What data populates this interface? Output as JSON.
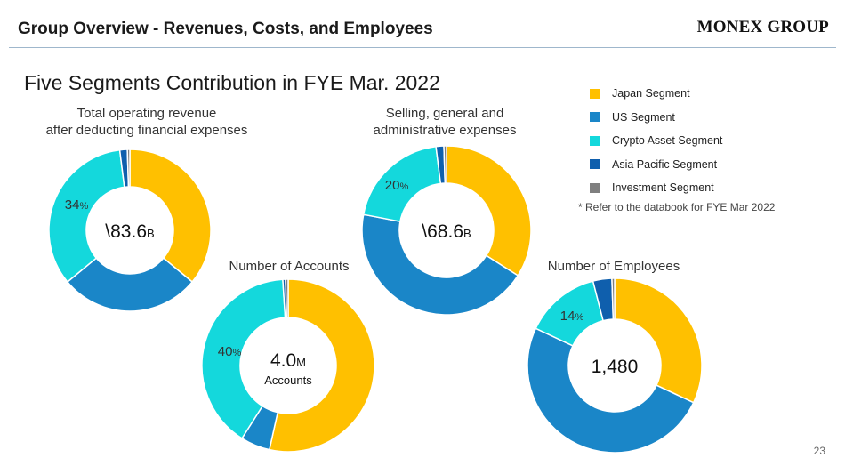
{
  "header": {
    "title": "Group Overview - Revenues, Costs, and Employees",
    "logo": "MONEX GROUP"
  },
  "section_title": "Five Segments Contribution in FYE Mar. 2022",
  "colors": {
    "japan": "#ffc000",
    "us": "#1a86c8",
    "crypto": "#14d8dc",
    "asia": "#0f5fad",
    "investment": "#7f7f7f"
  },
  "legend": [
    {
      "label": "Japan Segment",
      "color": "#ffc000"
    },
    {
      "label": "US Segment",
      "color": "#1a86c8"
    },
    {
      "label": "Crypto Asset Segment",
      "color": "#14d8dc"
    },
    {
      "label": "Asia Pacific Segment",
      "color": "#0f5fad"
    },
    {
      "label": "Investment Segment",
      "color": "#7f7f7f"
    }
  ],
  "note": "* Refer to the databook for FYE Mar 2022",
  "page_number": "23",
  "chart_data": [
    {
      "type": "pie",
      "title_lines": [
        "Total operating revenue",
        "after deducting financial expenses"
      ],
      "center": {
        "value": "\\83.6",
        "unit": "B"
      },
      "series_names": [
        "Japan Segment",
        "US Segment",
        "Crypto Asset Segment",
        "Asia Pacific Segment",
        "Investment Segment"
      ],
      "values": [
        36,
        28,
        34,
        1.5,
        0.5
      ],
      "data_labels": [
        {
          "segment": "Crypto Asset Segment",
          "number": "34",
          "unit": "%"
        }
      ]
    },
    {
      "type": "pie",
      "title_lines": [
        "Selling, general and",
        "administrative expenses"
      ],
      "center": {
        "value": "\\68.6",
        "unit": "B"
      },
      "series_names": [
        "Japan Segment",
        "US Segment",
        "Crypto Asset Segment",
        "Asia Pacific Segment",
        "Investment Segment"
      ],
      "values": [
        34,
        44,
        20,
        1.5,
        0.5
      ],
      "data_labels": [
        {
          "segment": "Crypto Asset Segment",
          "number": "20",
          "unit": "%"
        }
      ]
    },
    {
      "type": "pie",
      "title_lines": [
        "Number of Accounts"
      ],
      "center": {
        "value": "4.0",
        "unit": "M",
        "sub": "Accounts"
      },
      "series_names": [
        "Japan Segment",
        "US Segment",
        "Crypto Asset Segment",
        "Asia Pacific Segment",
        "Investment Segment"
      ],
      "values": [
        53.5,
        5.5,
        40,
        0.5,
        0.5
      ],
      "data_labels": [
        {
          "segment": "Crypto Asset Segment",
          "number": "40",
          "unit": "%"
        }
      ]
    },
    {
      "type": "pie",
      "title_lines": [
        "Number of Employees"
      ],
      "center": {
        "value": "1,480",
        "unit": ""
      },
      "series_names": [
        "Japan Segment",
        "US Segment",
        "Crypto Asset Segment",
        "Asia Pacific Segment",
        "Investment Segment"
      ],
      "values": [
        32,
        50,
        14,
        3.5,
        0.5
      ],
      "data_labels": [
        {
          "segment": "Crypto Asset Segment",
          "number": "14",
          "unit": "%"
        }
      ]
    }
  ]
}
